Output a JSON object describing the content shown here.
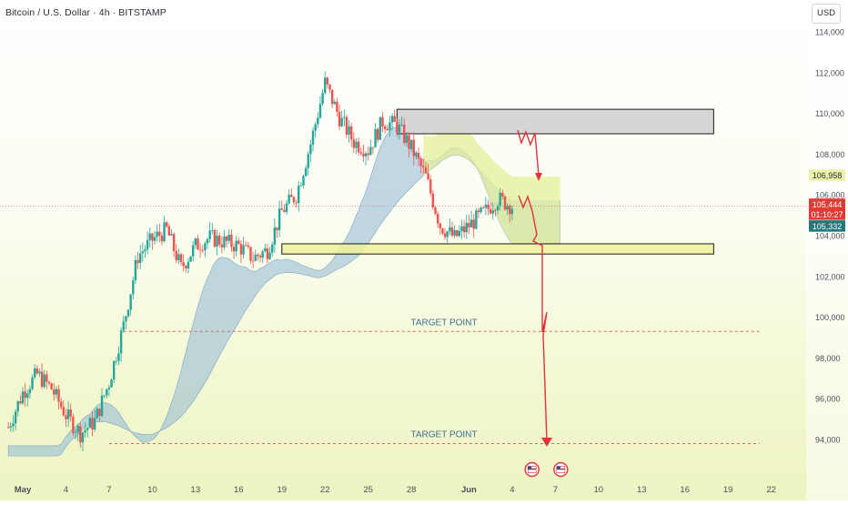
{
  "header": {
    "title": "Bitcoin / U.S. Dollar · 4h · BITSTAMP",
    "unit": "USD"
  },
  "chart_data": {
    "type": "candlestick",
    "title": "Bitcoin / U.S. Dollar · 4h · BITSTAMP",
    "ylabel": "USD",
    "ylim": [
      93000,
      115500
    ],
    "y_ticks": [
      94000,
      96000,
      98000,
      100000,
      102000,
      104000,
      106000,
      108000,
      110000,
      112000,
      114000
    ],
    "y_tick_labels": [
      "94,000",
      "96,000",
      "98,000",
      "100,000",
      "102,000",
      "104,000",
      "106,000",
      "108,000",
      "110,000",
      "112,000",
      "114,000"
    ],
    "x_ticks": [
      {
        "label": "May",
        "date": "2025-05-01",
        "bold": true
      },
      {
        "label": "4",
        "date": "2025-05-04"
      },
      {
        "label": "7",
        "date": "2025-05-07"
      },
      {
        "label": "10",
        "date": "2025-05-10"
      },
      {
        "label": "13",
        "date": "2025-05-13"
      },
      {
        "label": "16",
        "date": "2025-05-16"
      },
      {
        "label": "19",
        "date": "2025-05-19"
      },
      {
        "label": "22",
        "date": "2025-05-22"
      },
      {
        "label": "25",
        "date": "2025-05-25"
      },
      {
        "label": "28",
        "date": "2025-05-28"
      },
      {
        "label": "Jun",
        "date": "2025-06-01",
        "bold": true
      },
      {
        "label": "4",
        "date": "2025-06-04"
      },
      {
        "label": "7",
        "date": "2025-06-07"
      },
      {
        "label": "10",
        "date": "2025-06-10"
      },
      {
        "label": "13",
        "date": "2025-06-13"
      },
      {
        "label": "16",
        "date": "2025-06-16"
      },
      {
        "label": "19",
        "date": "2025-06-19"
      },
      {
        "label": "22",
        "date": "2025-06-22"
      }
    ],
    "grid": false,
    "colors": {
      "up": "#26a69a",
      "down": "#ef5350",
      "cloud": "#8fb8d6",
      "cloud_bear": "#e6ef9a",
      "zone_fill": "#d1d1d1",
      "support_fill": "#eef19c",
      "arrow": "#e0323b",
      "target_text": "#3d6f94",
      "price_red": "#e53935",
      "price_teal": "#22777a"
    },
    "price_series": [
      {
        "date": "2025-04-30",
        "close": 94600
      },
      {
        "date": "2025-05-01",
        "close": 96300
      },
      {
        "date": "2025-05-02",
        "close": 97200
      },
      {
        "date": "2025-05-03",
        "close": 96500
      },
      {
        "date": "2025-05-04",
        "close": 95200
      },
      {
        "date": "2025-05-05",
        "close": 94300
      },
      {
        "date": "2025-05-06",
        "close": 94900
      },
      {
        "date": "2025-05-07",
        "close": 96800
      },
      {
        "date": "2025-05-08",
        "close": 99600
      },
      {
        "date": "2025-05-09",
        "close": 103000
      },
      {
        "date": "2025-05-10",
        "close": 103800
      },
      {
        "date": "2025-05-11",
        "close": 104300
      },
      {
        "date": "2025-05-12",
        "close": 102400
      },
      {
        "date": "2025-05-13",
        "close": 103500
      },
      {
        "date": "2025-05-14",
        "close": 103900
      },
      {
        "date": "2025-05-15",
        "close": 103700
      },
      {
        "date": "2025-05-16",
        "close": 103500
      },
      {
        "date": "2025-05-17",
        "close": 102900
      },
      {
        "date": "2025-05-18",
        "close": 103300
      },
      {
        "date": "2025-05-19",
        "close": 105200
      },
      {
        "date": "2025-05-20",
        "close": 106000
      },
      {
        "date": "2025-05-21",
        "close": 108500
      },
      {
        "date": "2025-05-22",
        "close": 111500
      },
      {
        "date": "2025-05-23",
        "close": 109800
      },
      {
        "date": "2025-05-24",
        "close": 108600
      },
      {
        "date": "2025-05-25",
        "close": 108200
      },
      {
        "date": "2025-05-26",
        "close": 109600
      },
      {
        "date": "2025-05-27",
        "close": 109400
      },
      {
        "date": "2025-05-28",
        "close": 108300
      },
      {
        "date": "2025-05-29",
        "close": 106900
      },
      {
        "date": "2025-05-30",
        "close": 104500
      },
      {
        "date": "2025-05-31",
        "close": 103900
      },
      {
        "date": "2025-06-01",
        "close": 104500
      },
      {
        "date": "2025-06-02",
        "close": 105100
      },
      {
        "date": "2025-06-03",
        "close": 105800
      },
      {
        "date": "2025-06-04",
        "close": 105444
      }
    ],
    "zones": [
      {
        "name": "resistance",
        "date_start": "2025-05-27",
        "date_end": "2025-06-18",
        "y_low": 109000,
        "y_high": 110200
      },
      {
        "name": "support",
        "date_start": "2025-05-19",
        "date_end": "2025-06-18",
        "y_low": 103100,
        "y_high": 103600
      }
    ],
    "target_lines": [
      {
        "label": "TARGET POINT",
        "price": 99300,
        "date_start": "2025-05-08",
        "date_end": "2025-06-22"
      },
      {
        "label": "TARGET POINT",
        "price": 93800,
        "date_start": "2025-05-07",
        "date_end": "2025-06-22"
      }
    ],
    "price_labels": [
      {
        "text": "106,958",
        "price": 106958,
        "style": "plain"
      },
      {
        "text": "105,444",
        "price": 105444,
        "style": "red"
      },
      {
        "text": "01:10:27",
        "price": 104900,
        "style": "red"
      },
      {
        "text": "105,332",
        "price": 104450,
        "style": "teal"
      }
    ],
    "last_price": 105444,
    "event_icons": [
      {
        "name": "us-flag-event-icon",
        "date": "2025-06-05"
      },
      {
        "name": "us-flag-event-icon",
        "date": "2025-06-07"
      }
    ]
  }
}
